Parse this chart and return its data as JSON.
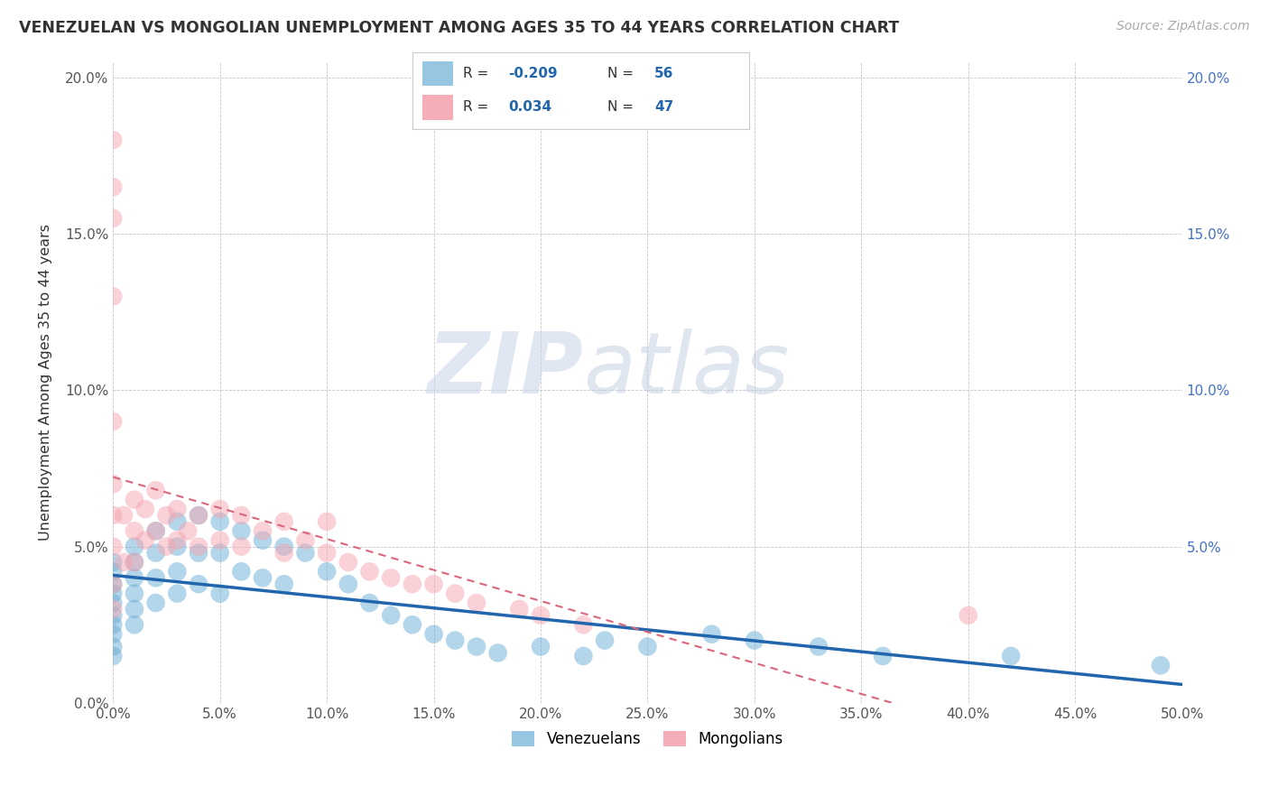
{
  "title": "VENEZUELAN VS MONGOLIAN UNEMPLOYMENT AMONG AGES 35 TO 44 YEARS CORRELATION CHART",
  "source": "Source: ZipAtlas.com",
  "ylabel": "Unemployment Among Ages 35 to 44 years",
  "xlim": [
    0.0,
    0.5
  ],
  "ylim": [
    0.0,
    0.205
  ],
  "xticks": [
    0.0,
    0.05,
    0.1,
    0.15,
    0.2,
    0.25,
    0.3,
    0.35,
    0.4,
    0.45,
    0.5
  ],
  "yticks": [
    0.0,
    0.05,
    0.1,
    0.15,
    0.2
  ],
  "xtick_labels": [
    "0.0%",
    "5.0%",
    "10.0%",
    "15.0%",
    "20.0%",
    "25.0%",
    "30.0%",
    "35.0%",
    "40.0%",
    "45.0%",
    "50.0%"
  ],
  "ytick_labels": [
    "0.0%",
    "5.0%",
    "10.0%",
    "15.0%",
    "20.0%"
  ],
  "venezuelan_R": -0.209,
  "venezuelan_N": 56,
  "mongolian_R": 0.034,
  "mongolian_N": 47,
  "venezuelan_color": "#6baed6",
  "mongolian_color": "#f4a5b0",
  "venezuelan_line_color": "#2166ac",
  "mongolian_line_color": "#d9667a",
  "watermark_zip": "ZIP",
  "watermark_atlas": "atlas",
  "background_color": "#ffffff",
  "venezuelan_x": [
    0.0,
    0.0,
    0.0,
    0.0,
    0.0,
    0.0,
    0.0,
    0.0,
    0.0,
    0.0,
    0.01,
    0.01,
    0.01,
    0.01,
    0.01,
    0.01,
    0.02,
    0.02,
    0.02,
    0.02,
    0.03,
    0.03,
    0.03,
    0.03,
    0.04,
    0.04,
    0.04,
    0.05,
    0.05,
    0.05,
    0.06,
    0.06,
    0.07,
    0.07,
    0.08,
    0.08,
    0.09,
    0.1,
    0.11,
    0.12,
    0.13,
    0.14,
    0.15,
    0.16,
    0.17,
    0.18,
    0.2,
    0.22,
    0.23,
    0.25,
    0.28,
    0.3,
    0.33,
    0.36,
    0.42,
    0.49
  ],
  "venezuelan_y": [
    0.045,
    0.042,
    0.038,
    0.035,
    0.032,
    0.028,
    0.025,
    0.022,
    0.018,
    0.015,
    0.05,
    0.045,
    0.04,
    0.035,
    0.03,
    0.025,
    0.055,
    0.048,
    0.04,
    0.032,
    0.058,
    0.05,
    0.042,
    0.035,
    0.06,
    0.048,
    0.038,
    0.058,
    0.048,
    0.035,
    0.055,
    0.042,
    0.052,
    0.04,
    0.05,
    0.038,
    0.048,
    0.042,
    0.038,
    0.032,
    0.028,
    0.025,
    0.022,
    0.02,
    0.018,
    0.016,
    0.018,
    0.015,
    0.02,
    0.018,
    0.022,
    0.02,
    0.018,
    0.015,
    0.015,
    0.012
  ],
  "mongolian_x": [
    0.0,
    0.0,
    0.0,
    0.0,
    0.0,
    0.0,
    0.0,
    0.0,
    0.0,
    0.0,
    0.005,
    0.005,
    0.01,
    0.01,
    0.01,
    0.015,
    0.015,
    0.02,
    0.02,
    0.025,
    0.025,
    0.03,
    0.03,
    0.035,
    0.04,
    0.04,
    0.05,
    0.05,
    0.06,
    0.06,
    0.07,
    0.08,
    0.08,
    0.09,
    0.1,
    0.1,
    0.11,
    0.12,
    0.13,
    0.14,
    0.15,
    0.16,
    0.17,
    0.19,
    0.2,
    0.22,
    0.4
  ],
  "mongolian_y": [
    0.18,
    0.165,
    0.155,
    0.13,
    0.09,
    0.07,
    0.06,
    0.05,
    0.038,
    0.03,
    0.06,
    0.045,
    0.065,
    0.055,
    0.045,
    0.062,
    0.052,
    0.068,
    0.055,
    0.06,
    0.05,
    0.062,
    0.052,
    0.055,
    0.06,
    0.05,
    0.062,
    0.052,
    0.06,
    0.05,
    0.055,
    0.058,
    0.048,
    0.052,
    0.058,
    0.048,
    0.045,
    0.042,
    0.04,
    0.038,
    0.038,
    0.035,
    0.032,
    0.03,
    0.028,
    0.025,
    0.028
  ]
}
